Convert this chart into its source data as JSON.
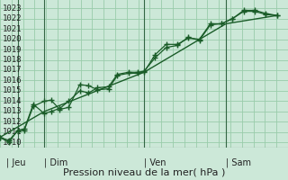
{
  "xlabel": "Pression niveau de la mer( hPa )",
  "bg_color": "#cce8d8",
  "plot_bg_color": "#cce8d8",
  "grid_color": "#99ccaa",
  "line_color": "#1a5c28",
  "vline_color": "#336644",
  "ylim": [
    1009.5,
    1023.8
  ],
  "xlim": [
    0,
    13
  ],
  "yticks": [
    1010,
    1011,
    1012,
    1013,
    1014,
    1015,
    1016,
    1017,
    1018,
    1019,
    1020,
    1021,
    1022,
    1023
  ],
  "day_labels": [
    "Jeu",
    "Dim",
    "Ven",
    "Sam"
  ],
  "day_positions": [
    0.3,
    2.0,
    6.5,
    10.2
  ],
  "vline_positions": [
    0.8,
    2.0,
    6.5,
    10.2
  ],
  "line1_x": [
    0.0,
    0.4,
    0.8,
    1.1,
    1.5,
    2.0,
    2.3,
    2.7,
    3.1,
    3.6,
    4.0,
    4.4,
    4.9,
    5.3,
    5.8,
    6.2,
    6.5,
    7.0,
    7.5,
    8.0,
    8.5,
    9.0,
    9.5,
    10.0,
    10.5,
    11.0,
    11.5,
    12.0,
    12.5
  ],
  "line1_y": [
    1010.5,
    1010.2,
    1011.1,
    1011.2,
    1013.5,
    1014.0,
    1014.1,
    1013.2,
    1013.4,
    1015.6,
    1015.5,
    1015.1,
    1015.2,
    1016.5,
    1016.7,
    1016.7,
    1016.8,
    1018.5,
    1019.5,
    1019.5,
    1020.1,
    1020.0,
    1021.5,
    1021.5,
    1022.0,
    1022.8,
    1022.8,
    1022.5,
    1022.3
  ],
  "line2_x": [
    0.0,
    0.4,
    0.8,
    1.1,
    1.5,
    2.0,
    2.3,
    2.7,
    3.1,
    3.6,
    4.0,
    4.4,
    4.9,
    5.3,
    5.8,
    6.2,
    6.5,
    7.0,
    7.5,
    8.0,
    8.5,
    9.0,
    9.5,
    10.0,
    10.5,
    11.0,
    11.5,
    12.0,
    12.5
  ],
  "line2_y": [
    1010.5,
    1010.0,
    1011.2,
    1011.3,
    1013.7,
    1012.8,
    1013.0,
    1013.3,
    1014.0,
    1015.0,
    1014.8,
    1015.3,
    1015.4,
    1016.6,
    1016.8,
    1016.8,
    1016.9,
    1018.2,
    1019.2,
    1019.4,
    1020.2,
    1019.9,
    1021.4,
    1021.5,
    1022.0,
    1022.7,
    1022.7,
    1022.4,
    1022.3
  ],
  "line3_x": [
    0.0,
    2.0,
    6.5,
    10.2,
    12.5
  ],
  "line3_y": [
    1010.5,
    1013.0,
    1016.8,
    1021.5,
    1022.3
  ],
  "xlabel_fontsize": 8,
  "tick_fontsize": 6.5
}
